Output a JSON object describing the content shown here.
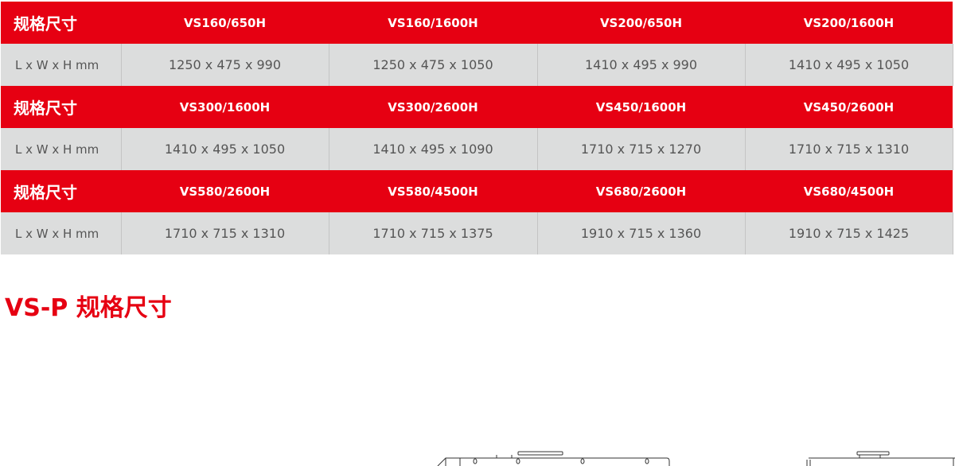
{
  "table": {
    "groups": [
      {
        "label": "规格尺寸",
        "models": [
          "VS160/650H",
          "VS160/1600H",
          "VS200/650H",
          "VS200/1600H"
        ],
        "row_label": "L x W x H mm",
        "dims": [
          "1250 x 475 x 990",
          "1250 x 475 x 1050",
          "1410 x 495 x 990",
          "1410 x 495 x 1050"
        ]
      },
      {
        "label": "规格尺寸",
        "models": [
          "VS300/1600H",
          "VS300/2600H",
          "VS450/1600H",
          "VS450/2600H"
        ],
        "row_label": "L x W x H mm",
        "dims": [
          "1410 x 495 x 1050",
          "1410 x 495 x 1090",
          "1710 x 715 x 1270",
          "1710 x 715 x 1310"
        ]
      },
      {
        "label": "规格尺寸",
        "models": [
          "VS580/2600H",
          "VS580/4500H",
          "VS680/2600H",
          "VS680/4500H"
        ],
        "row_label": "L x W x H mm",
        "dims": [
          "1710 x 715 x 1310",
          "1710 x 715 x 1375",
          "1910 x 715 x 1360",
          "1910 x 715 x 1425"
        ]
      }
    ]
  },
  "section_title": "VS-P 规格尺寸",
  "colors": {
    "accent": "#e60012",
    "row_bg": "#dcdddd"
  }
}
